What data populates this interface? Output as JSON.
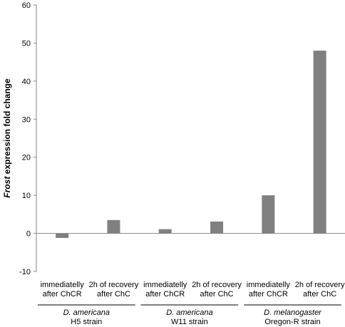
{
  "chart_data": {
    "type": "bar",
    "title": "",
    "xlabel": "",
    "ylabel_italic": "Frost",
    "ylabel_rest": " expression fold change",
    "ylim": [
      -10,
      60
    ],
    "yticks": [
      -10,
      0,
      10,
      20,
      30,
      40,
      50,
      60
    ],
    "grid": false,
    "legend": "none",
    "bar_color": "#808080",
    "categories": [
      [
        "immediatelly",
        "after ChCR"
      ],
      [
        "2h of recovery",
        "after ChC"
      ],
      [
        "immediatelly",
        "after ChCR"
      ],
      [
        "2h of recovery",
        "after ChC"
      ],
      [
        "immediatelly",
        "after ChCR"
      ],
      [
        "2h of recovery",
        "after ChC"
      ]
    ],
    "values": [
      -1.2,
      3.5,
      1.1,
      3.1,
      10.0,
      48.0
    ],
    "groups": [
      {
        "species": "D. americana",
        "strain": "H5 strain",
        "span": [
          0,
          1
        ]
      },
      {
        "species": "D. americana",
        "strain": "W11 strain",
        "span": [
          2,
          3
        ]
      },
      {
        "species": "D. melanogaster",
        "strain": "Oregon-R strain",
        "span": [
          4,
          5
        ]
      }
    ]
  }
}
